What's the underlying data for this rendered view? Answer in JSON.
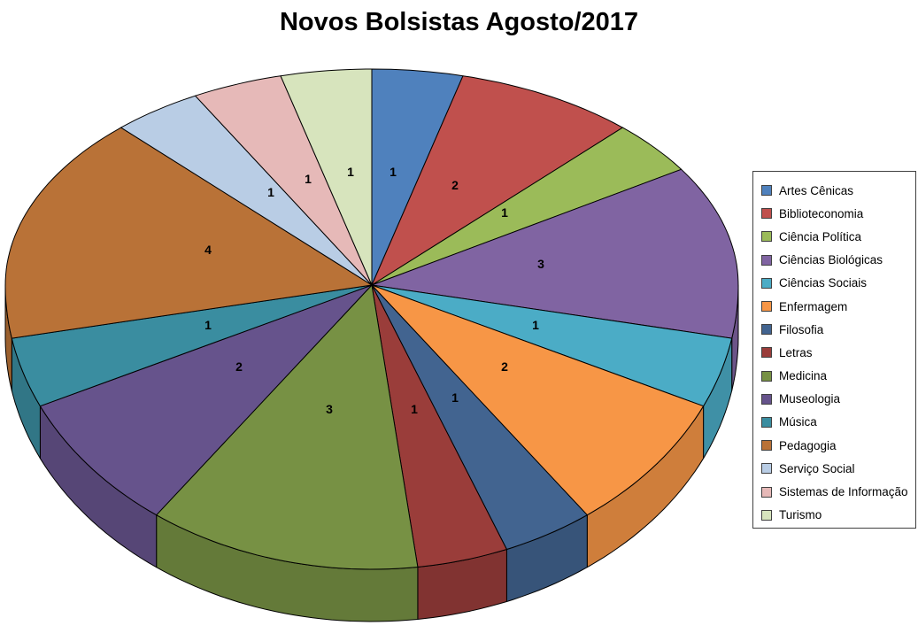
{
  "page": {
    "background_color": "#FFFFFF"
  },
  "chart_data": {
    "type": "pie",
    "variant": "3d-pie",
    "title": "Novos Bolsistas Agosto/2017",
    "title_color": "#000000",
    "legend_position": "right",
    "direction": "clockwise",
    "start_angle_deg": 0,
    "total": 25,
    "categories": [
      "Artes Cênicas",
      "Biblioteconomia",
      "Ciência Política",
      "Ciências Biológicas",
      "Ciências Sociais",
      "Enfermagem",
      "Filosofia",
      "Letras",
      "Medicina",
      "Museologia",
      "Música",
      "Pedagogia",
      "Serviço Social",
      "Sistemas de Informação",
      "Turismo"
    ],
    "values": [
      1,
      2,
      1,
      3,
      1,
      2,
      1,
      1,
      3,
      2,
      1,
      4,
      1,
      1,
      1
    ],
    "colors": [
      "#4F81BD",
      "#C0504D",
      "#9BBB59",
      "#8064A2",
      "#4BACC6",
      "#F79646",
      "#426490",
      "#9A3D3A",
      "#779144",
      "#66538C",
      "#3A8DA0",
      "#B97237",
      "#B9CDE5",
      "#E6B9B8",
      "#D7E4BD"
    ],
    "data_label_color": "#000000",
    "outline_color": "#000000",
    "legend_border_color": "#404040"
  }
}
